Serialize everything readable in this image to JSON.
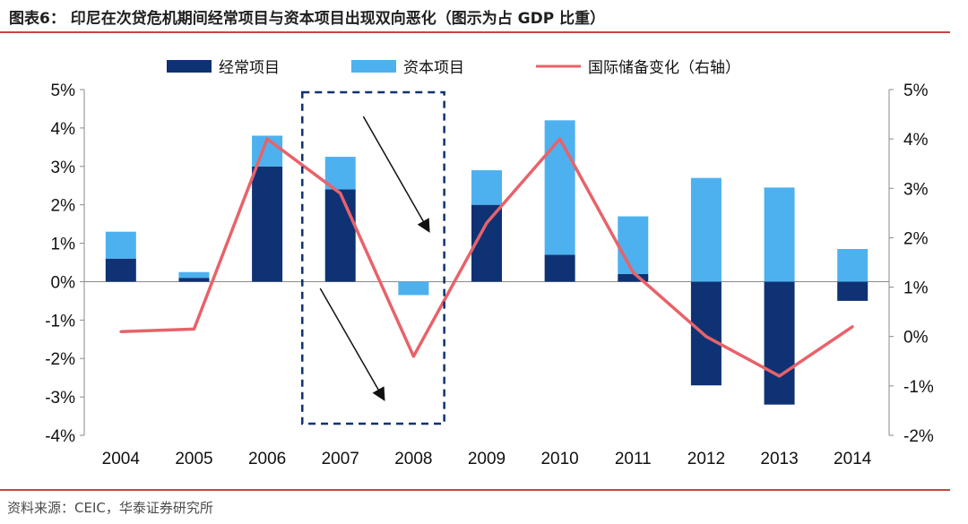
{
  "header": {
    "title": "图表6：  印尼在次贷危机期间经常项目与资本项目出现双向恶化（图示为占 GDP 比重）"
  },
  "footer": {
    "source": "资料来源：CEIC，华泰证券研究所"
  },
  "colors": {
    "current": "#0e3273",
    "capital": "#4db1ef",
    "reserve": "#e8626a",
    "rule": "#c8453f",
    "box": "#0e3273"
  },
  "chart_data": {
    "type": "bar",
    "stacked": true,
    "categories": [
      "2004",
      "2005",
      "2006",
      "2007",
      "2008",
      "2009",
      "2010",
      "2011",
      "2012",
      "2013",
      "2014"
    ],
    "series": [
      {
        "name": "经常项目",
        "type": "bar",
        "axis": "left",
        "values": [
          0.6,
          0.1,
          3.0,
          2.4,
          0.0,
          2.0,
          0.7,
          0.2,
          -2.7,
          -3.2,
          -0.5
        ]
      },
      {
        "name": "资本项目",
        "type": "bar",
        "axis": "left",
        "values": [
          0.7,
          0.15,
          0.8,
          0.85,
          -0.35,
          0.9,
          3.5,
          1.5,
          2.7,
          2.45,
          0.85
        ]
      },
      {
        "name": "国际储备变化（右轴）",
        "type": "line",
        "axis": "right",
        "values": [
          0.1,
          0.15,
          4.0,
          2.9,
          -0.4,
          2.3,
          4.0,
          1.3,
          0.0,
          -0.8,
          0.2
        ]
      }
    ],
    "left_axis": {
      "ylim": [
        -4,
        5
      ],
      "ticks": [
        "5%",
        "4%",
        "3%",
        "2%",
        "1%",
        "0%",
        "-1%",
        "-2%",
        "-3%",
        "-4%"
      ]
    },
    "right_axis": {
      "ylim": [
        -2,
        5
      ],
      "ticks": [
        "5%",
        "4%",
        "3%",
        "2%",
        "1%",
        "0%",
        "-1%",
        "-2%"
      ]
    },
    "legend": {
      "position": "top"
    },
    "annotations": {
      "highlight_years": [
        "2007",
        "2008"
      ]
    }
  }
}
